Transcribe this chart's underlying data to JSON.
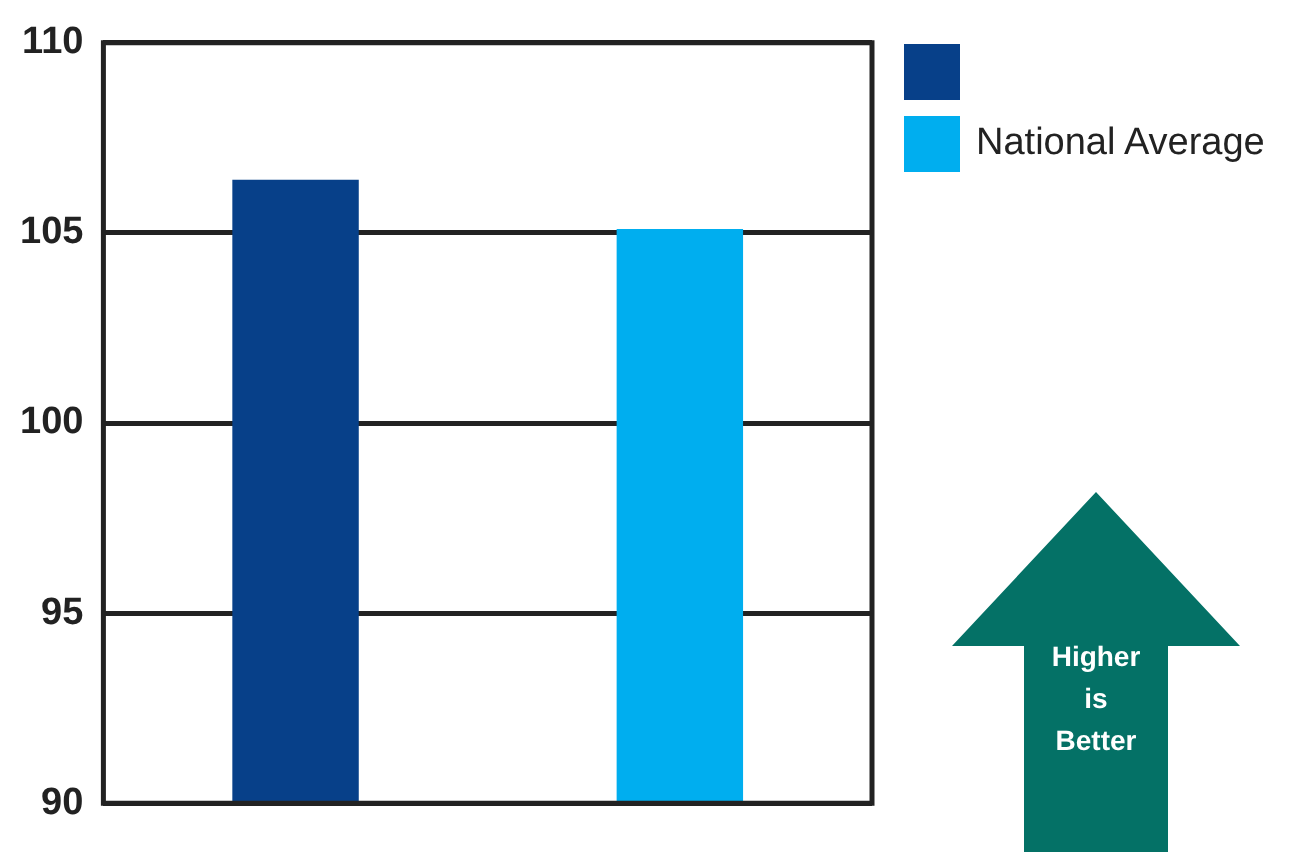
{
  "chart_data": {
    "type": "bar",
    "categories": [
      null,
      null
    ],
    "series": [
      {
        "color": "#074089",
        "values": [
          106.4,
          null
        ]
      },
      {
        "name": "National Average",
        "color": "#00aeef",
        "values": [
          null,
          105.1
        ]
      }
    ],
    "ylim": [
      90,
      110
    ],
    "yticks": [
      90,
      95,
      100,
      105,
      110
    ],
    "grid": "y",
    "legend": "top right",
    "annotations": [
      "Higher is Better"
    ]
  }
}
